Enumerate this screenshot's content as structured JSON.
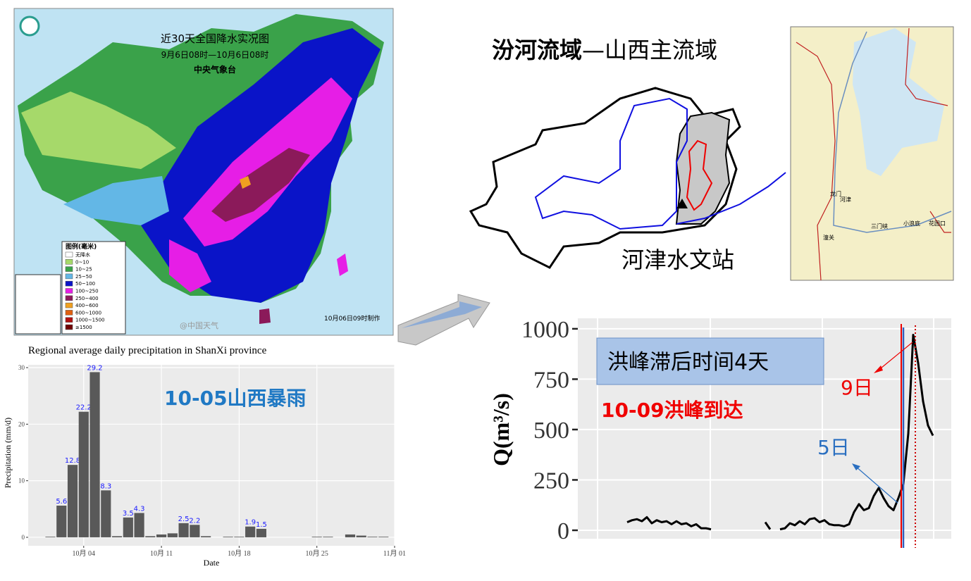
{
  "map": {
    "title": "近30天全国降水实况图",
    "period": "9月6日08时—10月6日08时",
    "source": "中央气象台",
    "legend_title": "图例(毫米)",
    "legend": [
      {
        "label": "无降水",
        "color": "#ffffff"
      },
      {
        "label": "0~10",
        "color": "#a6d96a"
      },
      {
        "label": "10~25",
        "color": "#3aa24a"
      },
      {
        "label": "25~50",
        "color": "#63b7e6"
      },
      {
        "label": "50~100",
        "color": "#0a14c8"
      },
      {
        "label": "100~250",
        "color": "#e61ee6"
      },
      {
        "label": "250~400",
        "color": "#8b1a5a"
      },
      {
        "label": "400~600",
        "color": "#f0a020"
      },
      {
        "label": "600~1000",
        "color": "#e06010"
      },
      {
        "label": "1000~1500",
        "color": "#b01010"
      },
      {
        "label": "≥1500",
        "color": "#700000"
      }
    ],
    "credit": "@中国天气",
    "made": "10月06日09时制作"
  },
  "basin": {
    "title_bold": "汾河流域",
    "title_rest": "—山西主流域",
    "station": "河津水文站",
    "places": [
      "龙门",
      "河津",
      "潼关",
      "三门峡",
      "小浪底",
      "花园口"
    ]
  },
  "chart_data": [
    {
      "type": "bar",
      "title": "Regional average daily precipitation in ShanXi province",
      "xlabel": "Date",
      "ylabel": "Precipitation (mm/d)",
      "annotation": "10-05山西暴雨",
      "x": [
        "10-01",
        "10-02",
        "10-03",
        "10-04",
        "10-05",
        "10-06",
        "10-07",
        "10-08",
        "10-09",
        "10-10",
        "10-11",
        "10-12",
        "10-13",
        "10-14",
        "10-15",
        "10-17",
        "10-18",
        "10-19",
        "10-20",
        "10-25",
        "10-26",
        "10-28",
        "10-29",
        "10-30",
        "10-31"
      ],
      "values": [
        0.1,
        5.6,
        12.8,
        22.2,
        29.2,
        8.3,
        0.2,
        3.5,
        4.3,
        0.2,
        0.5,
        0.7,
        2.5,
        2.2,
        0.2,
        0.1,
        0.1,
        1.9,
        1.5,
        0.1,
        0.1,
        0.5,
        0.3,
        0.1,
        0.1
      ],
      "value_labels": [
        null,
        "5.6",
        "12.8",
        "22.2",
        "29.2",
        "8.3",
        null,
        "3.5",
        "4.3",
        null,
        null,
        null,
        "2.5",
        "2.2",
        null,
        null,
        null,
        "1.9",
        "1.5",
        null,
        null,
        null,
        null,
        null,
        null
      ],
      "color": "#595959",
      "label_color": "#1a1aff",
      "xlim": [
        "09-29",
        "11-01"
      ],
      "xticks": [
        {
          "value": "10-04",
          "label": "10月 04"
        },
        {
          "value": "10-11",
          "label": "10月 11"
        },
        {
          "value": "10-18",
          "label": "10月 18"
        },
        {
          "value": "10-25",
          "label": "10月 25"
        },
        {
          "value": "11-01",
          "label": "11月 01"
        }
      ],
      "ylim": [
        -1.5,
        30.5
      ],
      "yticks": [
        0,
        10,
        20,
        30
      ],
      "grid": true
    },
    {
      "type": "line",
      "ylabel": "Q(m³/s)",
      "annotations": [
        "洪峰滞后时间4天",
        "10-09洪峰到达",
        "9日",
        "5日"
      ],
      "values": [
        40,
        50,
        55,
        45,
        65,
        35,
        50,
        40,
        45,
        30,
        45,
        30,
        35,
        20,
        30,
        10,
        10,
        5,
        null,
        null,
        null,
        null,
        null,
        null,
        null,
        null,
        null,
        null,
        40,
        5,
        null,
        5,
        10,
        35,
        25,
        45,
        30,
        55,
        60,
        40,
        50,
        30,
        25,
        25,
        20,
        30,
        90,
        130,
        100,
        110,
        170,
        210,
        160,
        120,
        100,
        160,
        230,
        480,
        970,
        830,
        640,
        520,
        470
      ],
      "color": "#000000",
      "ylim": [
        -42,
        1052
      ],
      "yticks": [
        0,
        250,
        500,
        750,
        1000
      ],
      "grid": true
    }
  ]
}
